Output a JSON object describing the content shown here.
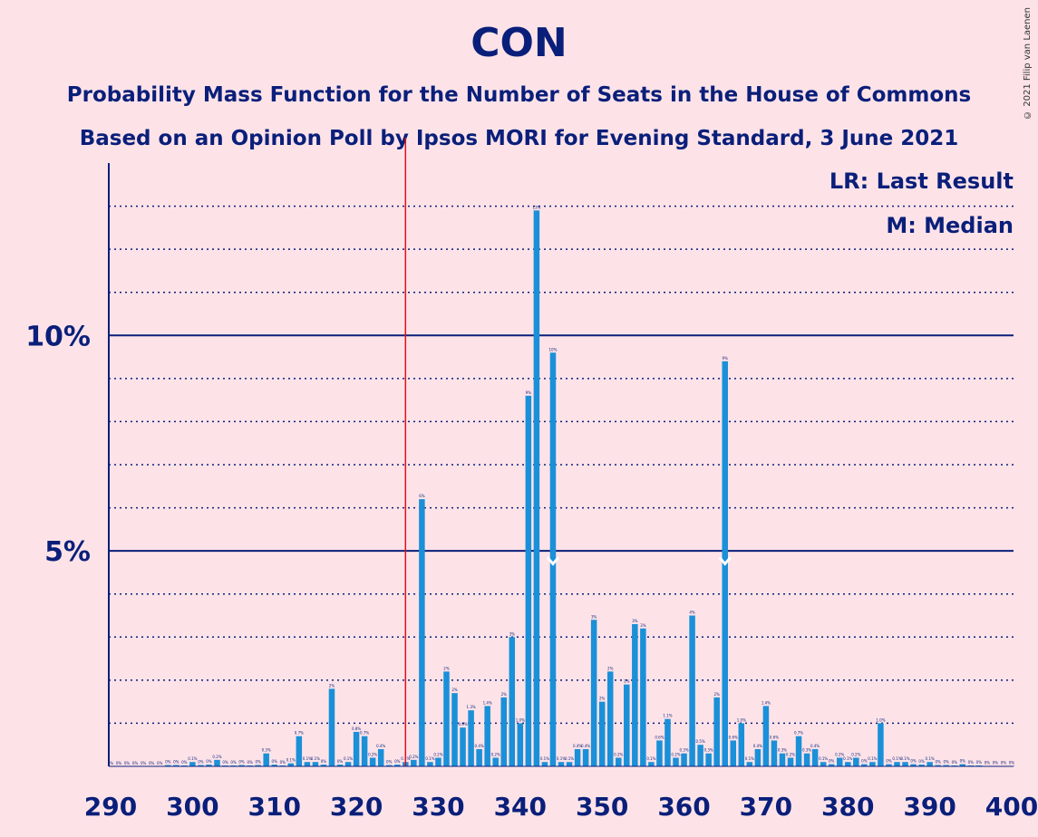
{
  "header": {
    "title": "CON",
    "subtitle_1": "Probability Mass Function for the Number of Seats in the House of Commons",
    "subtitle_2": "Based on an Opinion Poll by Ipsos MORI for Evening Standard, 3 June 2021",
    "copyright": "© 2021 Filip van Laenen"
  },
  "legend": {
    "last_result": "LR: Last Result",
    "median": "M: Median",
    "placement": "top-right"
  },
  "colors": {
    "background": "#fde3e8",
    "bar": "#1a90d8",
    "text": "#0a1f7a",
    "last_result_line": "#e0101a"
  },
  "chart_data": {
    "type": "bar",
    "xlabel": "",
    "ylabel": "",
    "xlim": [
      290,
      400
    ],
    "ylim": [
      0,
      14
    ],
    "x_ticks": [
      290,
      300,
      310,
      320,
      330,
      340,
      350,
      360,
      370,
      380,
      390,
      400
    ],
    "y_ticks": [
      {
        "value": 5,
        "label": "5%"
      },
      {
        "value": 10,
        "label": "10%"
      }
    ],
    "grid_minor": [
      1,
      2,
      3,
      4,
      6,
      7,
      8,
      9,
      11,
      12,
      13
    ],
    "last_result": 326,
    "median": 344,
    "median_secondary": 365,
    "x": [
      290,
      291,
      292,
      293,
      294,
      295,
      296,
      297,
      298,
      299,
      300,
      301,
      302,
      303,
      304,
      305,
      306,
      307,
      308,
      309,
      310,
      311,
      312,
      313,
      314,
      315,
      316,
      317,
      318,
      319,
      320,
      321,
      322,
      323,
      324,
      325,
      326,
      327,
      328,
      329,
      330,
      331,
      332,
      333,
      334,
      335,
      336,
      337,
      338,
      339,
      340,
      341,
      342,
      343,
      344,
      345,
      346,
      347,
      348,
      349,
      350,
      351,
      352,
      353,
      354,
      355,
      356,
      357,
      358,
      359,
      360,
      361,
      362,
      363,
      364,
      365,
      366,
      367,
      368,
      369,
      370,
      371,
      372,
      373,
      374,
      375,
      376,
      377,
      378,
      379,
      380,
      381,
      382,
      383,
      384,
      385,
      386,
      387,
      388,
      389,
      390,
      391,
      392,
      393,
      394,
      395,
      396,
      397,
      398,
      399,
      400
    ],
    "values": [
      0,
      0,
      0,
      0,
      0,
      0,
      0,
      0.03,
      0.03,
      0.02,
      0.1,
      0.03,
      0.04,
      0.15,
      0.02,
      0.02,
      0.03,
      0.02,
      0.03,
      0.3,
      0.04,
      0.02,
      0.07,
      0.7,
      0.1,
      0.1,
      0.04,
      1.8,
      0.04,
      0.1,
      0.8,
      0.7,
      0.2,
      0.4,
      0.03,
      0.04,
      0.1,
      0.15,
      6.2,
      0.1,
      0.2,
      2.2,
      1.7,
      0.9,
      1.3,
      0.4,
      1.4,
      0.2,
      1.6,
      3.0,
      1.0,
      8.6,
      12.9,
      0.1,
      9.6,
      0.1,
      0.1,
      0.4,
      0.4,
      3.4,
      1.5,
      2.2,
      0.2,
      1.9,
      3.3,
      3.2,
      0.1,
      0.6,
      1.1,
      0.2,
      0.3,
      3.5,
      0.5,
      0.3,
      1.6,
      9.4,
      0.6,
      1.0,
      0.1,
      0.4,
      1.4,
      0.6,
      0.3,
      0.2,
      0.7,
      0.3,
      0.4,
      0.1,
      0.05,
      0.2,
      0.1,
      0.2,
      0.05,
      0.1,
      1.0,
      0.05,
      0.1,
      0.1,
      0.05,
      0.04,
      0.1,
      0.03,
      0.03,
      0.02,
      0.05,
      0.02,
      0.02,
      0.01,
      0.01,
      0.01,
      0.01
    ],
    "labels": [
      "0%",
      "0%",
      "0%",
      "0%",
      "0%",
      "0%",
      "0%",
      "0%",
      "0%",
      "0%",
      "0.1%",
      "0%",
      "0%",
      "0.2%",
      "0%",
      "0%",
      "0%",
      "0%",
      "0%",
      "0.3%",
      "0%",
      "0%",
      "0.1%",
      "0.7%",
      "0.1%",
      "0.1%",
      "0%",
      "2%",
      "0%",
      "0.1%",
      "0.8%",
      "0.7%",
      "0.2%",
      "0.4%",
      "0%",
      "0%",
      "0.1%",
      "0.2%",
      "6%",
      "0.1%",
      "0.2%",
      "2%",
      "2%",
      "0.9%",
      "1.3%",
      "0.4%",
      "1.4%",
      "0.2%",
      "2%",
      "3%",
      "1.0%",
      "9%",
      "13%",
      "0.1%",
      "10%",
      "0.1%",
      "0.1%",
      "0.4%",
      "0.4%",
      "3%",
      "2%",
      "2%",
      "0.2%",
      "2%",
      "3%",
      "3%",
      "0.1%",
      "0.6%",
      "1.1%",
      "0.2%",
      "0.3%",
      "4%",
      "0.5%",
      "0.3%",
      "2%",
      "9%",
      "0.6%",
      "1.0%",
      "0.1%",
      "0.4%",
      "1.4%",
      "0.6%",
      "0.3%",
      "0.2%",
      "0.7%",
      "0.3%",
      "0.4%",
      "0.1%",
      "0%",
      "0.2%",
      "0.1%",
      "0.2%",
      "0%",
      "0.1%",
      "1.0%",
      "0%",
      "0.1%",
      "0.1%",
      "0%",
      "0%",
      "0.1%",
      "0%",
      "0%",
      "0%",
      "0%",
      "0%",
      "0%",
      "0%",
      "0%",
      "0%",
      "0%"
    ]
  }
}
